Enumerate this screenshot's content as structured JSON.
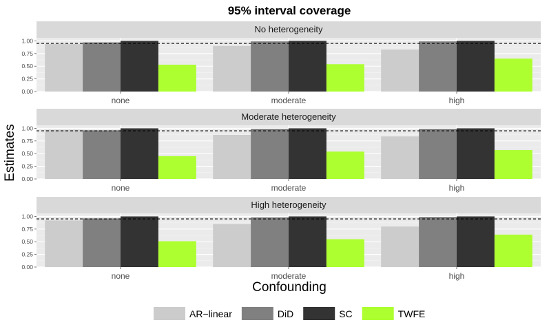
{
  "chart_data": {
    "type": "bar",
    "title": "95% interval coverage",
    "xlabel": "Confounding",
    "ylabel": "Estimates",
    "ylim": [
      0,
      1.06
    ],
    "yticks": [
      "0.00",
      "0.25",
      "0.50",
      "0.75",
      "1.00"
    ],
    "reference_line": 0.95,
    "categories": [
      "none",
      "moderate",
      "high"
    ],
    "legend": [
      {
        "name": "AR−linear",
        "color": "#cccccc"
      },
      {
        "name": "DiD",
        "color": "#808080"
      },
      {
        "name": "SC",
        "color": "#333333"
      },
      {
        "name": "TWFE",
        "color": "#adff2f"
      }
    ],
    "panels": [
      {
        "label": "No heterogeneity",
        "series": [
          {
            "name": "AR-linear",
            "values": [
              0.94,
              0.9,
              0.83
            ]
          },
          {
            "name": "DiD",
            "values": [
              0.97,
              0.99,
              0.99
            ]
          },
          {
            "name": "SC",
            "values": [
              1.0,
              1.0,
              1.0
            ]
          },
          {
            "name": "TWFE",
            "values": [
              0.53,
              0.54,
              0.65
            ]
          }
        ]
      },
      {
        "label": "Moderate heterogeneity",
        "series": [
          {
            "name": "AR-linear",
            "values": [
              0.97,
              0.87,
              0.84
            ]
          },
          {
            "name": "DiD",
            "values": [
              0.96,
              0.99,
              0.99
            ]
          },
          {
            "name": "SC",
            "values": [
              1.0,
              1.0,
              1.0
            ]
          },
          {
            "name": "TWFE",
            "values": [
              0.45,
              0.54,
              0.57
            ]
          }
        ]
      },
      {
        "label": "High heterogeneity",
        "series": [
          {
            "name": "AR-linear",
            "values": [
              0.92,
              0.85,
              0.8
            ]
          },
          {
            "name": "DiD",
            "values": [
              0.96,
              0.98,
              0.99
            ]
          },
          {
            "name": "SC",
            "values": [
              1.0,
              1.0,
              1.0
            ]
          },
          {
            "name": "TWFE",
            "values": [
              0.51,
              0.55,
              0.64
            ]
          }
        ]
      }
    ]
  }
}
